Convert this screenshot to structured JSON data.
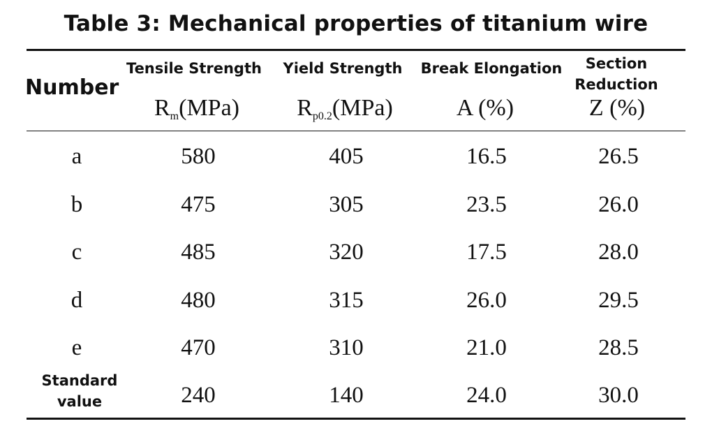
{
  "title": "Table 3: Mechanical properties of titanium wire",
  "table": {
    "number_header": "Number",
    "columns": [
      {
        "label": "Tensile Strength",
        "symbol": "R",
        "sub": "m",
        "unit": "(MPa)"
      },
      {
        "label": "Yield Strength",
        "symbol": "R",
        "sub": "p0.2",
        "unit": "(MPa)"
      },
      {
        "label": "Break Elongation",
        "symbol": "A",
        "sub": "",
        "unit": "(%)"
      },
      {
        "label": "Section Reduction",
        "symbol": "Z",
        "sub": "",
        "unit": "(%)"
      }
    ],
    "rows": [
      {
        "label": "a",
        "values": [
          "580",
          "405",
          "16.5",
          "26.5"
        ]
      },
      {
        "label": "b",
        "values": [
          "475",
          "305",
          "23.5",
          "26.0"
        ]
      },
      {
        "label": "c",
        "values": [
          "485",
          "320",
          "17.5",
          "28.0"
        ]
      },
      {
        "label": "d",
        "values": [
          "480",
          "315",
          "26.0",
          "29.5"
        ]
      },
      {
        "label": "e",
        "values": [
          "470",
          "310",
          "21.0",
          "28.5"
        ]
      },
      {
        "label": "Standard value",
        "values": [
          "240",
          "140",
          "24.0",
          "30.0"
        ]
      }
    ]
  }
}
